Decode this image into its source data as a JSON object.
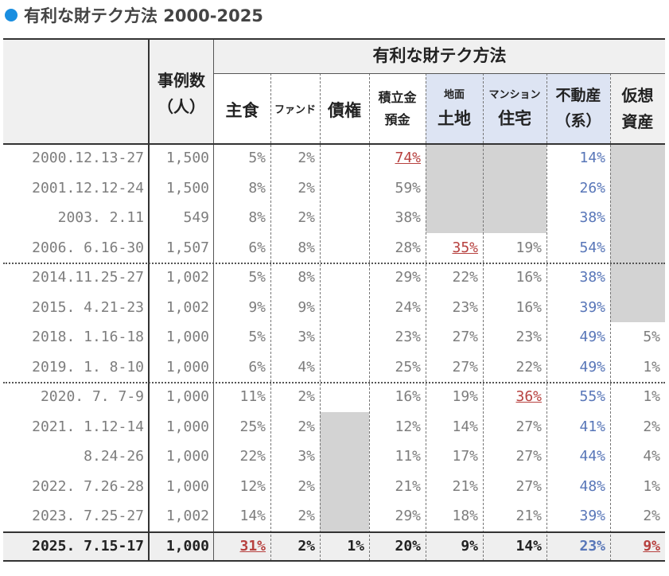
{
  "title": "有利な財テク方法 2000-2025",
  "colors": {
    "accent_dot": "#1a8ee0",
    "red_value": "#b7413f",
    "blue_value": "#5876b8",
    "value_gray": "#7d7d7d",
    "header_bg": "#f0f0f0",
    "realestate_header_bg": "#dde4f3",
    "inactive_cell": "#d3d3d3"
  },
  "chart_data": {
    "type": "table",
    "title": "有利な財テク方法 2000-2025",
    "header": {
      "col1": "事例数\n（人）",
      "group": "有利な財テク方法",
      "columns": [
        {
          "label": "主食"
        },
        {
          "label": "ファンド"
        },
        {
          "label": "債権"
        },
        {
          "label_top": "積立金",
          "label_bottom": "預金"
        },
        {
          "label_top": "地面",
          "label_bottom": "土地"
        },
        {
          "label_top": "マンション",
          "label_bottom": "住宅"
        },
        {
          "label_top": "不動産",
          "label_bottom": "（系）"
        },
        {
          "label_top": "仮想",
          "label_bottom": "資産"
        }
      ]
    },
    "rows": [
      {
        "date": "2000.12.13-27",
        "n": "1,500",
        "shushoku": "5%",
        "fund": "2%",
        "saiken": null,
        "yokin": "74%",
        "tochi": null,
        "jutaku": null,
        "fudosan": "14%",
        "kaso": null
      },
      {
        "date": "2001.12.12-24",
        "n": "1,500",
        "shushoku": "8%",
        "fund": "2%",
        "saiken": null,
        "yokin": "59%",
        "tochi": null,
        "jutaku": null,
        "fudosan": "26%",
        "kaso": null
      },
      {
        "date": "2003. 2.11",
        "n": "549",
        "shushoku": "8%",
        "fund": "2%",
        "saiken": null,
        "yokin": "38%",
        "tochi": null,
        "jutaku": null,
        "fudosan": "38%",
        "kaso": null
      },
      {
        "date": "2006. 6.16-30",
        "n": "1,507",
        "shushoku": "6%",
        "fund": "8%",
        "saiken": null,
        "yokin": "28%",
        "tochi": "35%",
        "jutaku": "19%",
        "fudosan": "54%",
        "kaso": null
      },
      {
        "date": "2014.11.25-27",
        "n": "1,002",
        "shushoku": "5%",
        "fund": "8%",
        "saiken": null,
        "yokin": "29%",
        "tochi": "22%",
        "jutaku": "16%",
        "fudosan": "38%",
        "kaso": null
      },
      {
        "date": "2015. 4.21-23",
        "n": "1,002",
        "shushoku": "9%",
        "fund": "9%",
        "saiken": null,
        "yokin": "24%",
        "tochi": "23%",
        "jutaku": "16%",
        "fudosan": "39%",
        "kaso": null
      },
      {
        "date": "2018. 1.16-18",
        "n": "1,000",
        "shushoku": "5%",
        "fund": "3%",
        "saiken": null,
        "yokin": "23%",
        "tochi": "27%",
        "jutaku": "23%",
        "fudosan": "49%",
        "kaso": "5%"
      },
      {
        "date": "2019. 1. 8-10",
        "n": "1,000",
        "shushoku": "6%",
        "fund": "4%",
        "saiken": null,
        "yokin": "25%",
        "tochi": "27%",
        "jutaku": "22%",
        "fudosan": "49%",
        "kaso": "1%"
      },
      {
        "date": "2020. 7. 7-9",
        "n": "1,000",
        "shushoku": "11%",
        "fund": "2%",
        "saiken": null,
        "yokin": "16%",
        "tochi": "19%",
        "jutaku": "36%",
        "fudosan": "55%",
        "kaso": "1%"
      },
      {
        "date": "2021. 1.12-14",
        "n": "1,000",
        "shushoku": "25%",
        "fund": "2%",
        "saiken": null,
        "yokin": "12%",
        "tochi": "14%",
        "jutaku": "27%",
        "fudosan": "41%",
        "kaso": "2%"
      },
      {
        "date": "8.24-26",
        "n": "1,000",
        "shushoku": "22%",
        "fund": "3%",
        "saiken": null,
        "yokin": "11%",
        "tochi": "17%",
        "jutaku": "27%",
        "fudosan": "44%",
        "kaso": "4%"
      },
      {
        "date": "2022. 7.26-28",
        "n": "1,000",
        "shushoku": "12%",
        "fund": "2%",
        "saiken": null,
        "yokin": "21%",
        "tochi": "21%",
        "jutaku": "27%",
        "fudosan": "48%",
        "kaso": "1%"
      },
      {
        "date": "2023. 7.25-27",
        "n": "1,002",
        "shushoku": "14%",
        "fund": "2%",
        "saiken": null,
        "yokin": "29%",
        "tochi": "18%",
        "jutaku": "21%",
        "fudosan": "39%",
        "kaso": "2%"
      },
      {
        "date": "2025. 7.15-17",
        "n": "1,000",
        "shushoku": "31%",
        "fund": "2%",
        "saiken": "1%",
        "yokin": "20%",
        "tochi": "9%",
        "jutaku": "14%",
        "fudosan": "23%",
        "kaso": "9%"
      }
    ],
    "highlights": [
      {
        "row": 0,
        "col": "yokin",
        "style": "red"
      },
      {
        "row": 3,
        "col": "tochi",
        "style": "red"
      },
      {
        "row": 8,
        "col": "jutaku",
        "style": "red"
      },
      {
        "row": 13,
        "col": "shushoku",
        "style": "red"
      },
      {
        "row": 13,
        "col": "kaso",
        "style": "red"
      }
    ],
    "blue_column": "fudosan"
  }
}
